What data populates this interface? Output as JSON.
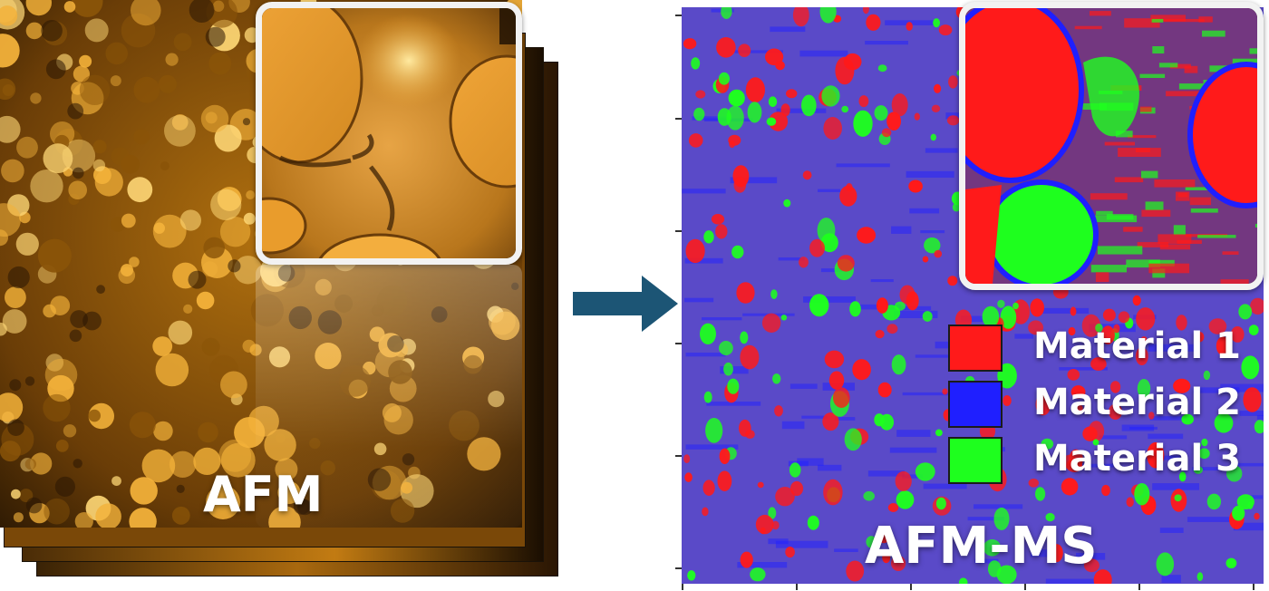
{
  "left_panel": {
    "label": "AFM",
    "colors": {
      "dark": "#2a1604",
      "mid": "#8a5408",
      "bright": "#f3b13a",
      "highlight": "#ffd877"
    }
  },
  "arrow": {
    "color": "#1c5575"
  },
  "right_panel": {
    "label": "AFM-MS",
    "legend": [
      {
        "label": "Material 1",
        "color": "#ff1a1a"
      },
      {
        "label": "Material 2",
        "color": "#1f1fff"
      },
      {
        "label": "Material 3",
        "color": "#1eff1e"
      }
    ]
  }
}
